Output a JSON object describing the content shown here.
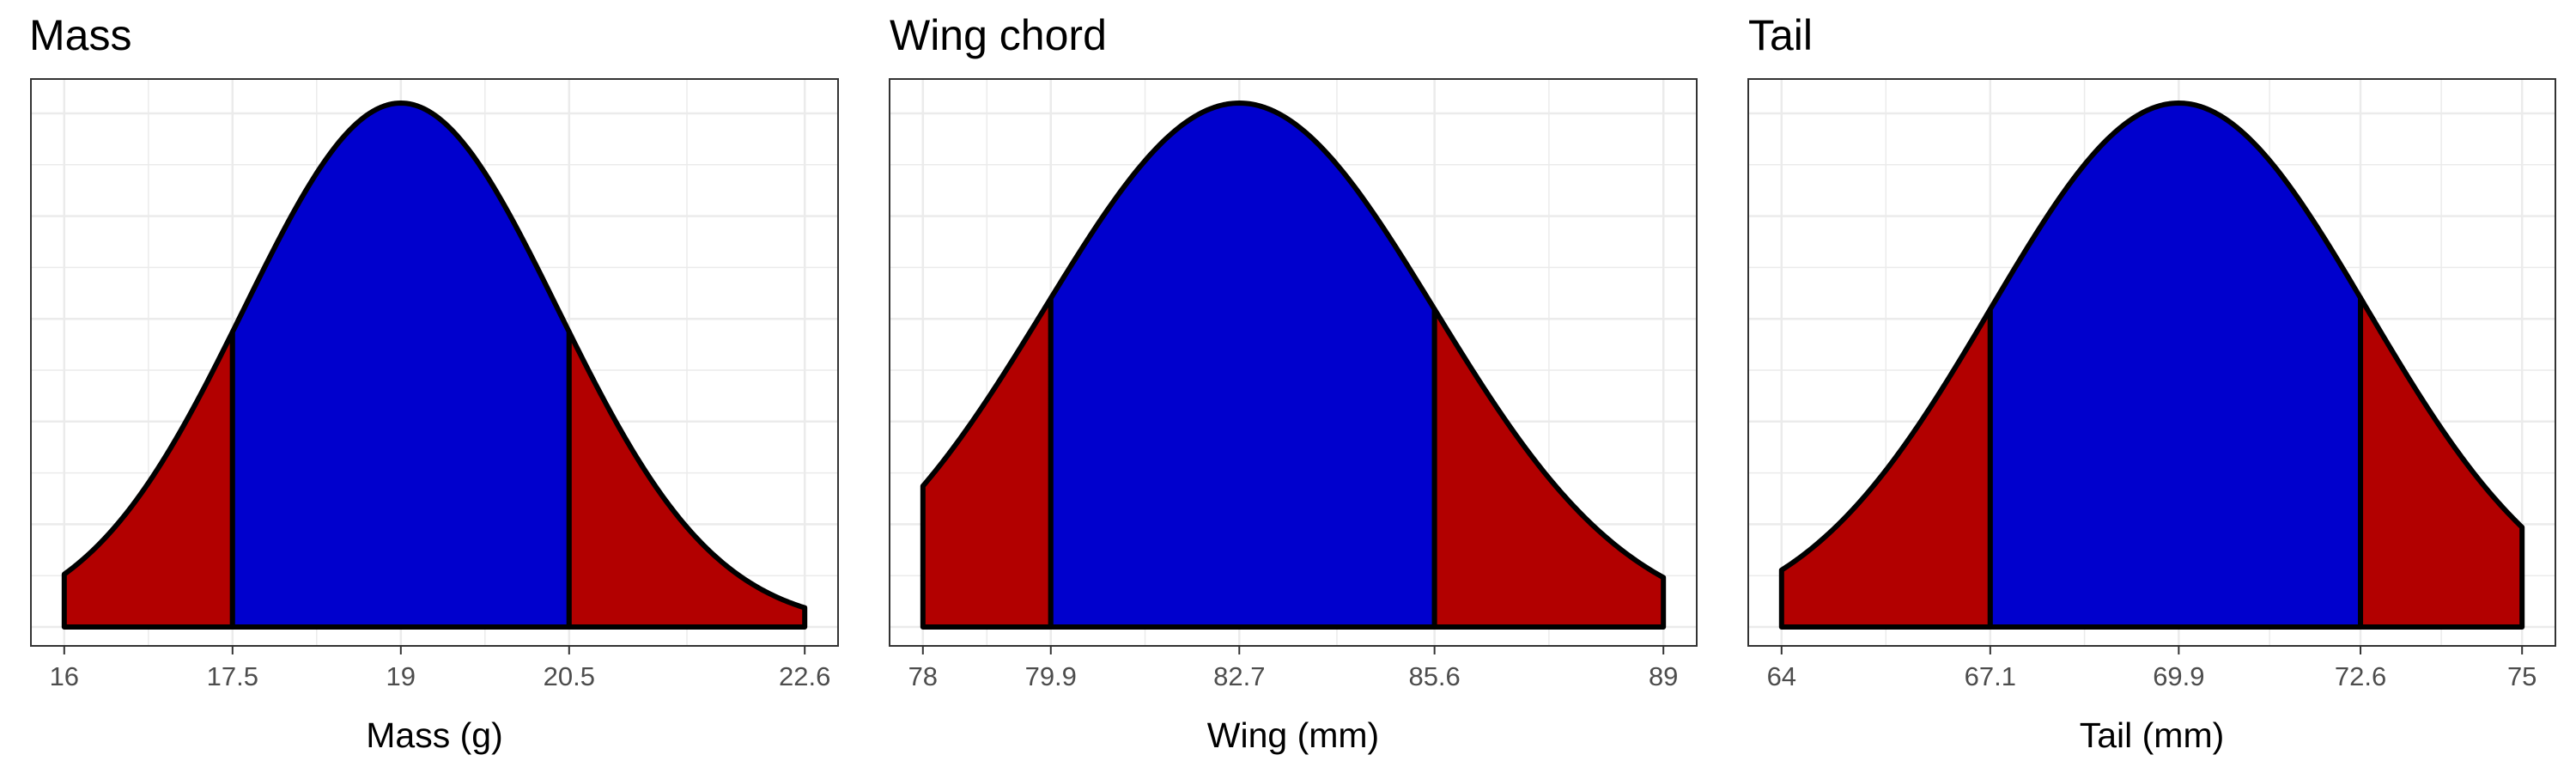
{
  "colors": {
    "tail": "#B20000",
    "center": "#0000CD",
    "outline": "#000000",
    "grid": "#ebebeb"
  },
  "chart_data": [
    {
      "type": "area",
      "title": "Mass",
      "xlabel": "Mass (g)",
      "mean": 19,
      "sd": 1.4,
      "xlim": [
        16,
        22.6
      ],
      "shade_lower": 17.5,
      "shade_upper": 20.5,
      "ticks": [
        16,
        17.5,
        19,
        20.5,
        22.6
      ],
      "tick_labels": [
        "16",
        "17.5",
        "19",
        "20.5",
        "22.6"
      ],
      "grid": true
    },
    {
      "type": "area",
      "title": "Wing chord",
      "xlabel": "Wing (mm)",
      "mean": 82.7,
      "sd": 2.9,
      "xlim": [
        78,
        89
      ],
      "shade_lower": 79.9,
      "shade_upper": 85.6,
      "ticks": [
        78,
        79.9,
        82.7,
        85.6,
        89
      ],
      "tick_labels": [
        "78",
        "79.9",
        "82.7",
        "85.6",
        "89"
      ],
      "grid": true
    },
    {
      "type": "area",
      "title": "Tail",
      "xlabel": "Tail (mm)",
      "mean": 69.9,
      "sd": 2.8,
      "xlim": [
        64,
        75
      ],
      "shade_lower": 67.1,
      "shade_upper": 72.6,
      "ticks": [
        64,
        67.1,
        69.9,
        72.6,
        75
      ],
      "tick_labels": [
        "64",
        "67.1",
        "69.9",
        "72.6",
        "75"
      ],
      "grid": true
    }
  ]
}
